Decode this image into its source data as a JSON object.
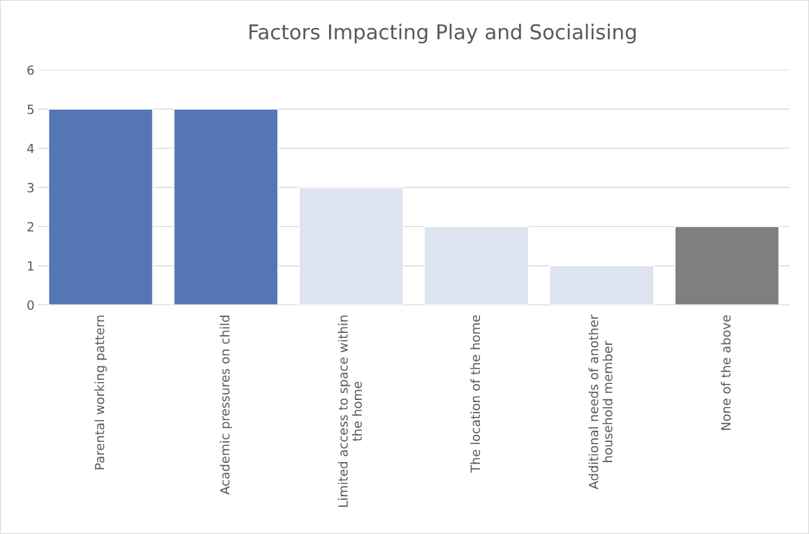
{
  "chart_data": {
    "type": "bar",
    "title": "Factors Impacting Play and Socialising",
    "categories": [
      "Parental working pattern",
      "Academic pressures on child",
      "Limited access to space within\nthe home",
      "The location of the home",
      "Additional needs of another\nhousehold member",
      "None of the above"
    ],
    "values": [
      5,
      5,
      3,
      2,
      1,
      2
    ],
    "colors": [
      "#4472c4",
      "#4472c4",
      "#dae3f3",
      "#dae3f3",
      "#dae3f3",
      "#7f7f7f"
    ],
    "ylim": [
      0,
      6
    ],
    "yticks": [
      0,
      1,
      2,
      3,
      4,
      5,
      6
    ],
    "grid": "y"
  }
}
